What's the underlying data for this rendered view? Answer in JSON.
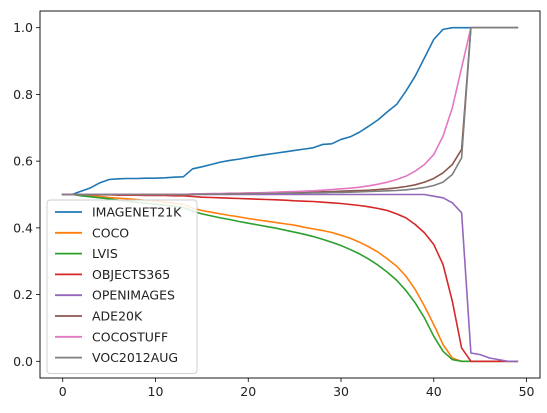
{
  "chart_data": {
    "type": "line",
    "title": "",
    "xlabel": "",
    "ylabel": "",
    "xlim": [
      -2.45,
      51.45
    ],
    "ylim": [
      -0.05,
      1.05
    ],
    "xticks": [
      0,
      10,
      20,
      30,
      40,
      50
    ],
    "yticks": [
      0.0,
      0.2,
      0.4,
      0.6,
      0.8,
      1.0
    ],
    "xtick_labels": [
      "0",
      "10",
      "20",
      "30",
      "40",
      "50"
    ],
    "ytick_labels": [
      "0.0",
      "0.2",
      "0.4",
      "0.6",
      "0.8",
      "1.0"
    ],
    "grid": false,
    "legend_position": "lower-left",
    "x": [
      0,
      1,
      2,
      3,
      4,
      5,
      6,
      7,
      8,
      9,
      10,
      11,
      12,
      13,
      14,
      15,
      16,
      17,
      18,
      19,
      20,
      21,
      22,
      23,
      24,
      25,
      26,
      27,
      28,
      29,
      30,
      31,
      32,
      33,
      34,
      35,
      36,
      37,
      38,
      39,
      40,
      41,
      42,
      43,
      44,
      45,
      46,
      47,
      48,
      49
    ],
    "series": [
      {
        "name": "IMAGENET21K",
        "color": "#1f77b4",
        "values": [
          0.5,
          0.5,
          0.51,
          0.52,
          0.535,
          0.545,
          0.547,
          0.548,
          0.548,
          0.549,
          0.549,
          0.55,
          0.552,
          0.553,
          0.577,
          0.583,
          0.59,
          0.597,
          0.602,
          0.606,
          0.611,
          0.616,
          0.62,
          0.624,
          0.628,
          0.632,
          0.636,
          0.64,
          0.65,
          0.652,
          0.665,
          0.673,
          0.687,
          0.705,
          0.724,
          0.748,
          0.77,
          0.81,
          0.855,
          0.91,
          0.965,
          0.995,
          1.0,
          1.0,
          1.0,
          1.0,
          1.0,
          1.0,
          1.0,
          1.0
        ]
      },
      {
        "name": "COCO",
        "color": "#ff7f0e",
        "values": [
          0.5,
          0.5,
          0.498,
          0.496,
          0.494,
          0.491,
          0.489,
          0.487,
          0.485,
          0.482,
          0.48,
          0.477,
          0.474,
          0.47,
          0.459,
          0.452,
          0.447,
          0.442,
          0.437,
          0.433,
          0.428,
          0.424,
          0.42,
          0.416,
          0.412,
          0.408,
          0.402,
          0.397,
          0.392,
          0.386,
          0.378,
          0.369,
          0.357,
          0.343,
          0.327,
          0.307,
          0.285,
          0.255,
          0.215,
          0.165,
          0.11,
          0.05,
          0.01,
          0.0,
          0.0,
          0.0,
          0.0,
          0.0,
          0.0,
          0.0
        ]
      },
      {
        "name": "LVIS",
        "color": "#2ca02c",
        "values": [
          0.5,
          0.5,
          0.496,
          0.493,
          0.49,
          0.487,
          0.483,
          0.48,
          0.477,
          0.474,
          0.471,
          0.468,
          0.465,
          0.461,
          0.45,
          0.442,
          0.436,
          0.43,
          0.425,
          0.419,
          0.414,
          0.409,
          0.404,
          0.399,
          0.393,
          0.387,
          0.381,
          0.374,
          0.366,
          0.357,
          0.347,
          0.335,
          0.322,
          0.306,
          0.288,
          0.267,
          0.243,
          0.212,
          0.175,
          0.13,
          0.075,
          0.03,
          0.005,
          0.0,
          0.0,
          0.0,
          0.0,
          0.0,
          0.0,
          0.0
        ]
      },
      {
        "name": "OBJECTS365",
        "color": "#d62728",
        "values": [
          0.5,
          0.5,
          0.5,
          0.499,
          0.499,
          0.499,
          0.498,
          0.498,
          0.498,
          0.497,
          0.497,
          0.497,
          0.496,
          0.496,
          0.494,
          0.492,
          0.491,
          0.49,
          0.489,
          0.488,
          0.487,
          0.486,
          0.485,
          0.484,
          0.483,
          0.481,
          0.48,
          0.479,
          0.477,
          0.475,
          0.473,
          0.47,
          0.467,
          0.463,
          0.458,
          0.452,
          0.442,
          0.43,
          0.41,
          0.385,
          0.35,
          0.29,
          0.18,
          0.04,
          0.0,
          0.0,
          0.0,
          0.0,
          0.0,
          0.0
        ]
      },
      {
        "name": "OPENIMAGES",
        "color": "#9467bd",
        "values": [
          0.5,
          0.5,
          0.5,
          0.5,
          0.5,
          0.5,
          0.5,
          0.5,
          0.5,
          0.5,
          0.5,
          0.5,
          0.5,
          0.5,
          0.5,
          0.5,
          0.5,
          0.5,
          0.5,
          0.5,
          0.5,
          0.5,
          0.5,
          0.5,
          0.5,
          0.5,
          0.5,
          0.5,
          0.5,
          0.5,
          0.5,
          0.5,
          0.5,
          0.5,
          0.5,
          0.5,
          0.5,
          0.5,
          0.5,
          0.5,
          0.495,
          0.49,
          0.475,
          0.445,
          0.025,
          0.02,
          0.01,
          0.005,
          0.0,
          0.0
        ]
      },
      {
        "name": "ADE20K",
        "color": "#8c564b",
        "values": [
          0.5,
          0.5,
          0.5,
          0.5,
          0.5,
          0.5,
          0.5,
          0.5,
          0.5,
          0.5,
          0.5,
          0.5,
          0.5,
          0.5,
          0.501,
          0.501,
          0.502,
          0.502,
          0.502,
          0.503,
          0.503,
          0.504,
          0.504,
          0.505,
          0.505,
          0.506,
          0.506,
          0.507,
          0.508,
          0.509,
          0.51,
          0.511,
          0.512,
          0.513,
          0.515,
          0.517,
          0.52,
          0.524,
          0.529,
          0.537,
          0.548,
          0.565,
          0.59,
          0.635,
          1.0,
          1.0,
          1.0,
          1.0,
          1.0,
          1.0
        ]
      },
      {
        "name": "COCOSTUFF",
        "color": "#e377c2",
        "values": [
          0.5,
          0.5,
          0.5,
          0.5,
          0.5,
          0.5,
          0.5,
          0.5,
          0.5,
          0.5,
          0.5,
          0.5,
          0.5,
          0.5,
          0.502,
          0.502,
          0.503,
          0.503,
          0.504,
          0.504,
          0.505,
          0.505,
          0.506,
          0.507,
          0.508,
          0.509,
          0.51,
          0.511,
          0.513,
          0.515,
          0.517,
          0.519,
          0.522,
          0.526,
          0.531,
          0.537,
          0.545,
          0.555,
          0.57,
          0.59,
          0.62,
          0.675,
          0.76,
          0.88,
          1.0,
          1.0,
          1.0,
          1.0,
          1.0,
          1.0
        ]
      },
      {
        "name": "VOC2012AUG",
        "color": "#7f7f7f",
        "values": [
          0.5,
          0.5,
          0.5,
          0.5,
          0.5,
          0.5,
          0.5,
          0.5,
          0.5,
          0.5,
          0.5,
          0.5,
          0.5,
          0.5,
          0.5,
          0.501,
          0.501,
          0.501,
          0.502,
          0.502,
          0.502,
          0.503,
          0.503,
          0.503,
          0.504,
          0.504,
          0.504,
          0.505,
          0.505,
          0.506,
          0.506,
          0.507,
          0.508,
          0.509,
          0.51,
          0.511,
          0.512,
          0.514,
          0.517,
          0.521,
          0.527,
          0.537,
          0.56,
          0.61,
          1.0,
          1.0,
          1.0,
          1.0,
          1.0,
          1.0
        ]
      }
    ]
  }
}
